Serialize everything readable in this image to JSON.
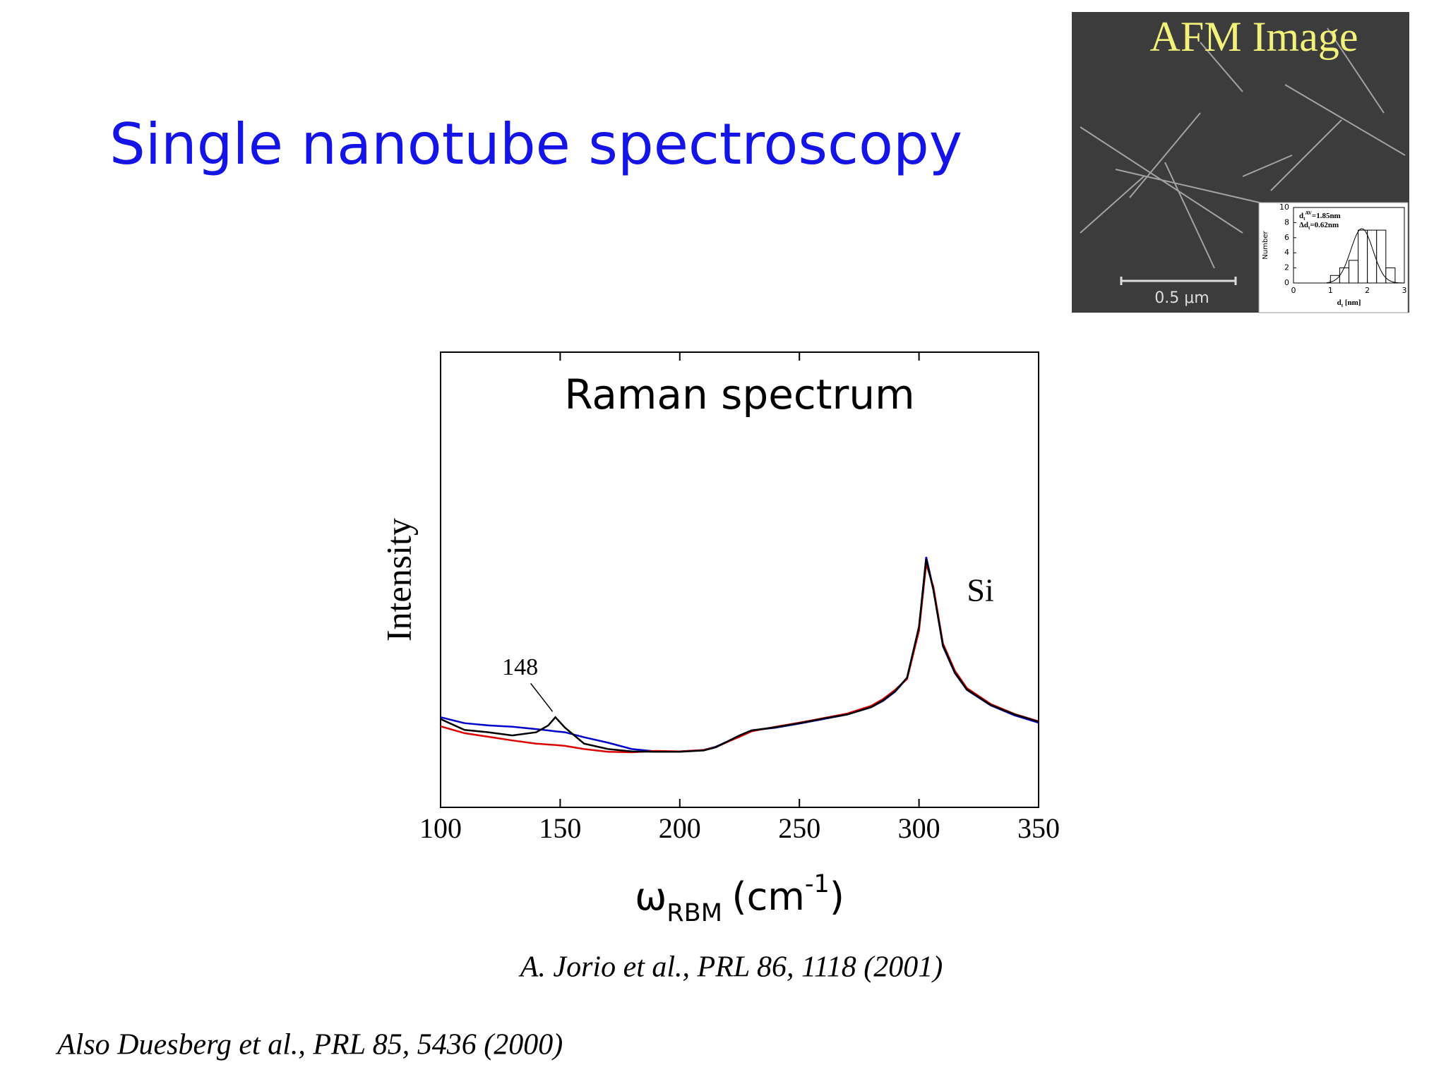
{
  "slide": {
    "title": "Single nanotube spectroscopy",
    "citation": "A.   Jorio et al., PRL 86, 1118 (2001)",
    "also": "Also Duesberg et al., PRL 85, 5436 (2000)"
  },
  "afm_image": {
    "title": "AFM Image",
    "scale_bar": "0.5 μm"
  },
  "chart_data": [
    {
      "type": "line",
      "title": "Raman spectrum",
      "y_label": "Intensity",
      "x_label": {
        "symbol": "ω",
        "sub": "RBM",
        "unit": "(cm",
        "sup": "-1",
        "end": ")"
      },
      "annotations": [
        "148",
        "Si"
      ],
      "xlim": [
        100,
        350
      ],
      "xticks": [
        100,
        150,
        200,
        250,
        300,
        350
      ],
      "ylim": [
        0,
        100
      ],
      "x": [
        100,
        110,
        120,
        130,
        140,
        145,
        148,
        152,
        160,
        170,
        180,
        190,
        200,
        210,
        215,
        220,
        225,
        230,
        240,
        250,
        260,
        270,
        280,
        285,
        290,
        295,
        300,
        303,
        306,
        310,
        315,
        320,
        330,
        340,
        350
      ],
      "series": [
        {
          "color": "#0000cc",
          "values": [
            19.8,
            18.5,
            18,
            17.7,
            17.2,
            16.9,
            16.7,
            16.5,
            15.4,
            14.2,
            12.8,
            12.3,
            12.3,
            12.6,
            13.3,
            14.5,
            15.8,
            16.9,
            17.5,
            18.4,
            19.4,
            20.4,
            22,
            23.4,
            25.4,
            28.4,
            39.5,
            55,
            48,
            35.4,
            29.5,
            25.8,
            22.4,
            20.2,
            18.6
          ]
        },
        {
          "color": "#dd0000",
          "values": [
            17.8,
            16.3,
            15.5,
            14.7,
            14,
            13.8,
            13.7,
            13.5,
            12.8,
            12.2,
            12.1,
            12.4,
            12.3,
            12.6,
            13.2,
            14.4,
            15.5,
            16.7,
            17.7,
            18.6,
            19.6,
            20.6,
            22.3,
            23.8,
            25.8,
            28.2,
            38.8,
            53.5,
            48.5,
            36,
            30,
            26.2,
            22.7,
            20.5,
            18.9
          ]
        },
        {
          "color": "#000000",
          "values": [
            19.4,
            17,
            16.5,
            15.8,
            16.5,
            18,
            19.8,
            17.5,
            14,
            12.8,
            12.3,
            12.2,
            12.2,
            12.5,
            13.2,
            14.5,
            15.8,
            16.9,
            17.6,
            18.5,
            19.5,
            20.4,
            22,
            23.5,
            25.5,
            28.5,
            39.7,
            54.5,
            47.8,
            35.6,
            29.6,
            25.9,
            22.5,
            20.4,
            18.8
          ]
        }
      ]
    },
    {
      "type": "histogram",
      "y_label": "Number",
      "x_label": {
        "symbol": "d",
        "sub": "t",
        "unit": "[nm]"
      },
      "annotations": [
        {
          "symbol": "d",
          "sub": "t",
          "sup": "AV",
          "rest": "=1.85nm"
        },
        {
          "symbol": "Δd",
          "sub": "t",
          "rest": "=0.62nm"
        }
      ],
      "bins": [
        1,
        1.25,
        1.5,
        1.75,
        2,
        2.25,
        2.5,
        2.75
      ],
      "counts": [
        1,
        2,
        3,
        7,
        7,
        7,
        2
      ],
      "xlim": [
        0,
        3
      ],
      "xticks": [
        0,
        1,
        2,
        3
      ],
      "ylim": [
        0,
        10
      ],
      "yticks": [
        0,
        2,
        4,
        6,
        8,
        10
      ],
      "color": "#ffffff"
    }
  ]
}
